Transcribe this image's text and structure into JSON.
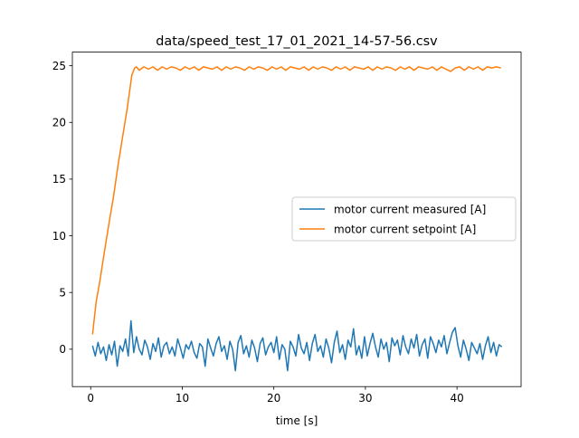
{
  "chart_data": {
    "type": "line",
    "title": "data/speed_test_17_01_2021_14-57-56.csv",
    "xlabel": "time [s]",
    "ylabel": "",
    "xlim": [
      -2.0,
      47.0
    ],
    "ylim": [
      -3.3,
      26.2
    ],
    "x_ticks": [
      0,
      10,
      20,
      30,
      40
    ],
    "y_ticks": [
      0,
      5,
      10,
      15,
      20,
      25
    ],
    "grid": false,
    "legend_position": "center-right",
    "series": [
      {
        "name": "motor current measured [A]",
        "color": "#1f77b4",
        "x": [
          0.2,
          0.5,
          0.8,
          1.1,
          1.4,
          1.7,
          2.0,
          2.3,
          2.6,
          2.9,
          3.2,
          3.5,
          3.8,
          4.1,
          4.4,
          4.7,
          5.0,
          5.3,
          5.6,
          5.9,
          6.2,
          6.5,
          6.8,
          7.1,
          7.4,
          7.7,
          8.0,
          8.3,
          8.6,
          8.9,
          9.2,
          9.5,
          9.8,
          10.1,
          10.4,
          10.7,
          11.0,
          11.3,
          11.6,
          11.9,
          12.2,
          12.5,
          12.8,
          13.1,
          13.4,
          13.7,
          14.0,
          14.3,
          14.6,
          14.9,
          15.2,
          15.5,
          15.8,
          16.1,
          16.4,
          16.7,
          17.0,
          17.3,
          17.6,
          17.9,
          18.2,
          18.5,
          18.8,
          19.1,
          19.4,
          19.7,
          20.0,
          20.3,
          20.6,
          20.9,
          21.2,
          21.5,
          21.8,
          22.1,
          22.4,
          22.7,
          23.0,
          23.3,
          23.6,
          23.9,
          24.2,
          24.5,
          24.8,
          25.1,
          25.4,
          25.7,
          26.0,
          26.3,
          26.6,
          26.9,
          27.2,
          27.5,
          27.8,
          28.1,
          28.4,
          28.7,
          29.0,
          29.3,
          29.6,
          29.9,
          30.2,
          30.5,
          30.8,
          31.1,
          31.4,
          31.7,
          32.0,
          32.3,
          32.6,
          32.9,
          33.2,
          33.5,
          33.8,
          34.1,
          34.4,
          34.7,
          35.0,
          35.3,
          35.6,
          35.9,
          36.2,
          36.5,
          36.8,
          37.1,
          37.4,
          37.7,
          38.0,
          38.3,
          38.6,
          38.9,
          39.2,
          39.5,
          39.8,
          40.1,
          40.4,
          40.7,
          41.0,
          41.3,
          41.6,
          41.9,
          42.2,
          42.5,
          42.8,
          43.1,
          43.4,
          43.7,
          44.0,
          44.3,
          44.6,
          44.9
        ],
        "y": [
          0.3,
          -0.6,
          0.6,
          -0.4,
          0.2,
          -1.0,
          0.4,
          -0.5,
          0.7,
          -1.5,
          0.3,
          -0.2,
          0.9,
          -0.6,
          2.5,
          -0.3,
          1.1,
          0.0,
          -0.5,
          0.8,
          0.2,
          -0.9,
          0.5,
          -0.2,
          1.0,
          -0.7,
          0.3,
          0.6,
          -0.4,
          0.2,
          -0.6,
          0.9,
          0.1,
          -0.8,
          0.4,
          0.0,
          0.7,
          -0.3,
          -0.8,
          0.5,
          0.2,
          -1.5,
          0.9,
          0.1,
          -0.6,
          0.5,
          1.1,
          -0.2,
          0.3,
          -0.9,
          0.7,
          0.0,
          -1.9,
          0.6,
          1.2,
          -0.4,
          0.3,
          -0.7,
          0.8,
          0.1,
          -1.1,
          0.5,
          1.0,
          -0.5,
          0.2,
          0.6,
          -0.3,
          1.1,
          -0.9,
          0.4,
          0.0,
          -1.9,
          0.7,
          0.2,
          -0.6,
          1.3,
          0.1,
          -0.4,
          0.6,
          -1.0,
          0.5,
          1.3,
          -0.2,
          0.3,
          -0.7,
          0.9,
          0.1,
          -1.2,
          0.6,
          1.6,
          -0.3,
          0.4,
          -0.9,
          0.8,
          0.2,
          1.8,
          -0.5,
          0.3,
          -0.8,
          1.1,
          -0.6,
          0.5,
          1.4,
          0.2,
          -0.7,
          0.9,
          0.0,
          0.6,
          -1.1,
          1.0,
          0.3,
          0.8,
          -0.5,
          1.2,
          0.2,
          -0.4,
          0.9,
          0.1,
          1.3,
          -0.6,
          0.4,
          0.9,
          -0.8,
          1.1,
          0.5,
          -0.3,
          0.8,
          0.2,
          1.2,
          -0.4,
          0.6,
          1.5,
          1.9,
          0.3,
          -0.7,
          0.8,
          0.0,
          -1.0,
          0.6,
          0.1,
          -0.4,
          0.5,
          -0.9,
          0.3,
          1.1,
          -0.3,
          0.6,
          -0.6,
          0.4,
          0.2
        ]
      },
      {
        "name": "motor current setpoint [A]",
        "color": "#ff7f0e",
        "x": [
          0.2,
          0.6,
          1.0,
          1.5,
          2.0,
          2.5,
          3.0,
          3.5,
          4.0,
          4.5,
          4.8,
          5.0,
          5.3,
          5.8,
          6.3,
          6.8,
          7.3,
          7.8,
          8.3,
          8.8,
          9.3,
          9.8,
          10.3,
          10.8,
          11.3,
          11.8,
          12.3,
          12.8,
          13.3,
          13.8,
          14.3,
          14.8,
          15.3,
          15.8,
          16.3,
          16.8,
          17.3,
          17.8,
          18.3,
          18.8,
          19.3,
          19.8,
          20.3,
          20.8,
          21.3,
          21.8,
          22.3,
          22.8,
          23.3,
          23.8,
          24.3,
          24.8,
          25.3,
          25.8,
          26.3,
          26.8,
          27.3,
          27.8,
          28.3,
          28.8,
          29.3,
          29.8,
          30.3,
          30.8,
          31.3,
          31.8,
          32.3,
          32.8,
          33.3,
          33.8,
          34.3,
          34.8,
          35.3,
          35.8,
          36.3,
          36.8,
          37.3,
          37.8,
          38.3,
          38.8,
          39.3,
          39.8,
          40.3,
          40.8,
          41.3,
          41.8,
          42.3,
          42.8,
          43.3,
          43.8,
          44.3,
          44.8
        ],
        "y": [
          1.3,
          4.2,
          6.0,
          8.6,
          11.1,
          13.5,
          16.3,
          18.8,
          21.3,
          24.2,
          24.8,
          24.9,
          24.6,
          24.9,
          24.7,
          24.9,
          24.6,
          24.9,
          24.7,
          24.9,
          24.8,
          24.6,
          24.9,
          24.7,
          24.9,
          24.6,
          24.9,
          24.8,
          24.7,
          24.9,
          24.6,
          24.9,
          24.7,
          24.9,
          24.8,
          24.6,
          24.9,
          24.7,
          24.9,
          24.8,
          24.6,
          24.9,
          24.7,
          24.9,
          24.6,
          24.9,
          24.8,
          24.7,
          24.9,
          24.6,
          24.9,
          24.7,
          24.9,
          24.8,
          24.6,
          24.9,
          24.7,
          24.9,
          24.6,
          24.9,
          24.8,
          24.7,
          24.9,
          24.6,
          24.9,
          24.7,
          24.9,
          24.8,
          24.6,
          24.9,
          24.7,
          24.9,
          24.6,
          24.9,
          24.8,
          24.7,
          24.9,
          24.6,
          24.9,
          24.7,
          24.5,
          24.8,
          24.9,
          24.6,
          24.9,
          24.7,
          24.9,
          24.6,
          24.9,
          24.8,
          24.9,
          24.8
        ]
      }
    ]
  }
}
